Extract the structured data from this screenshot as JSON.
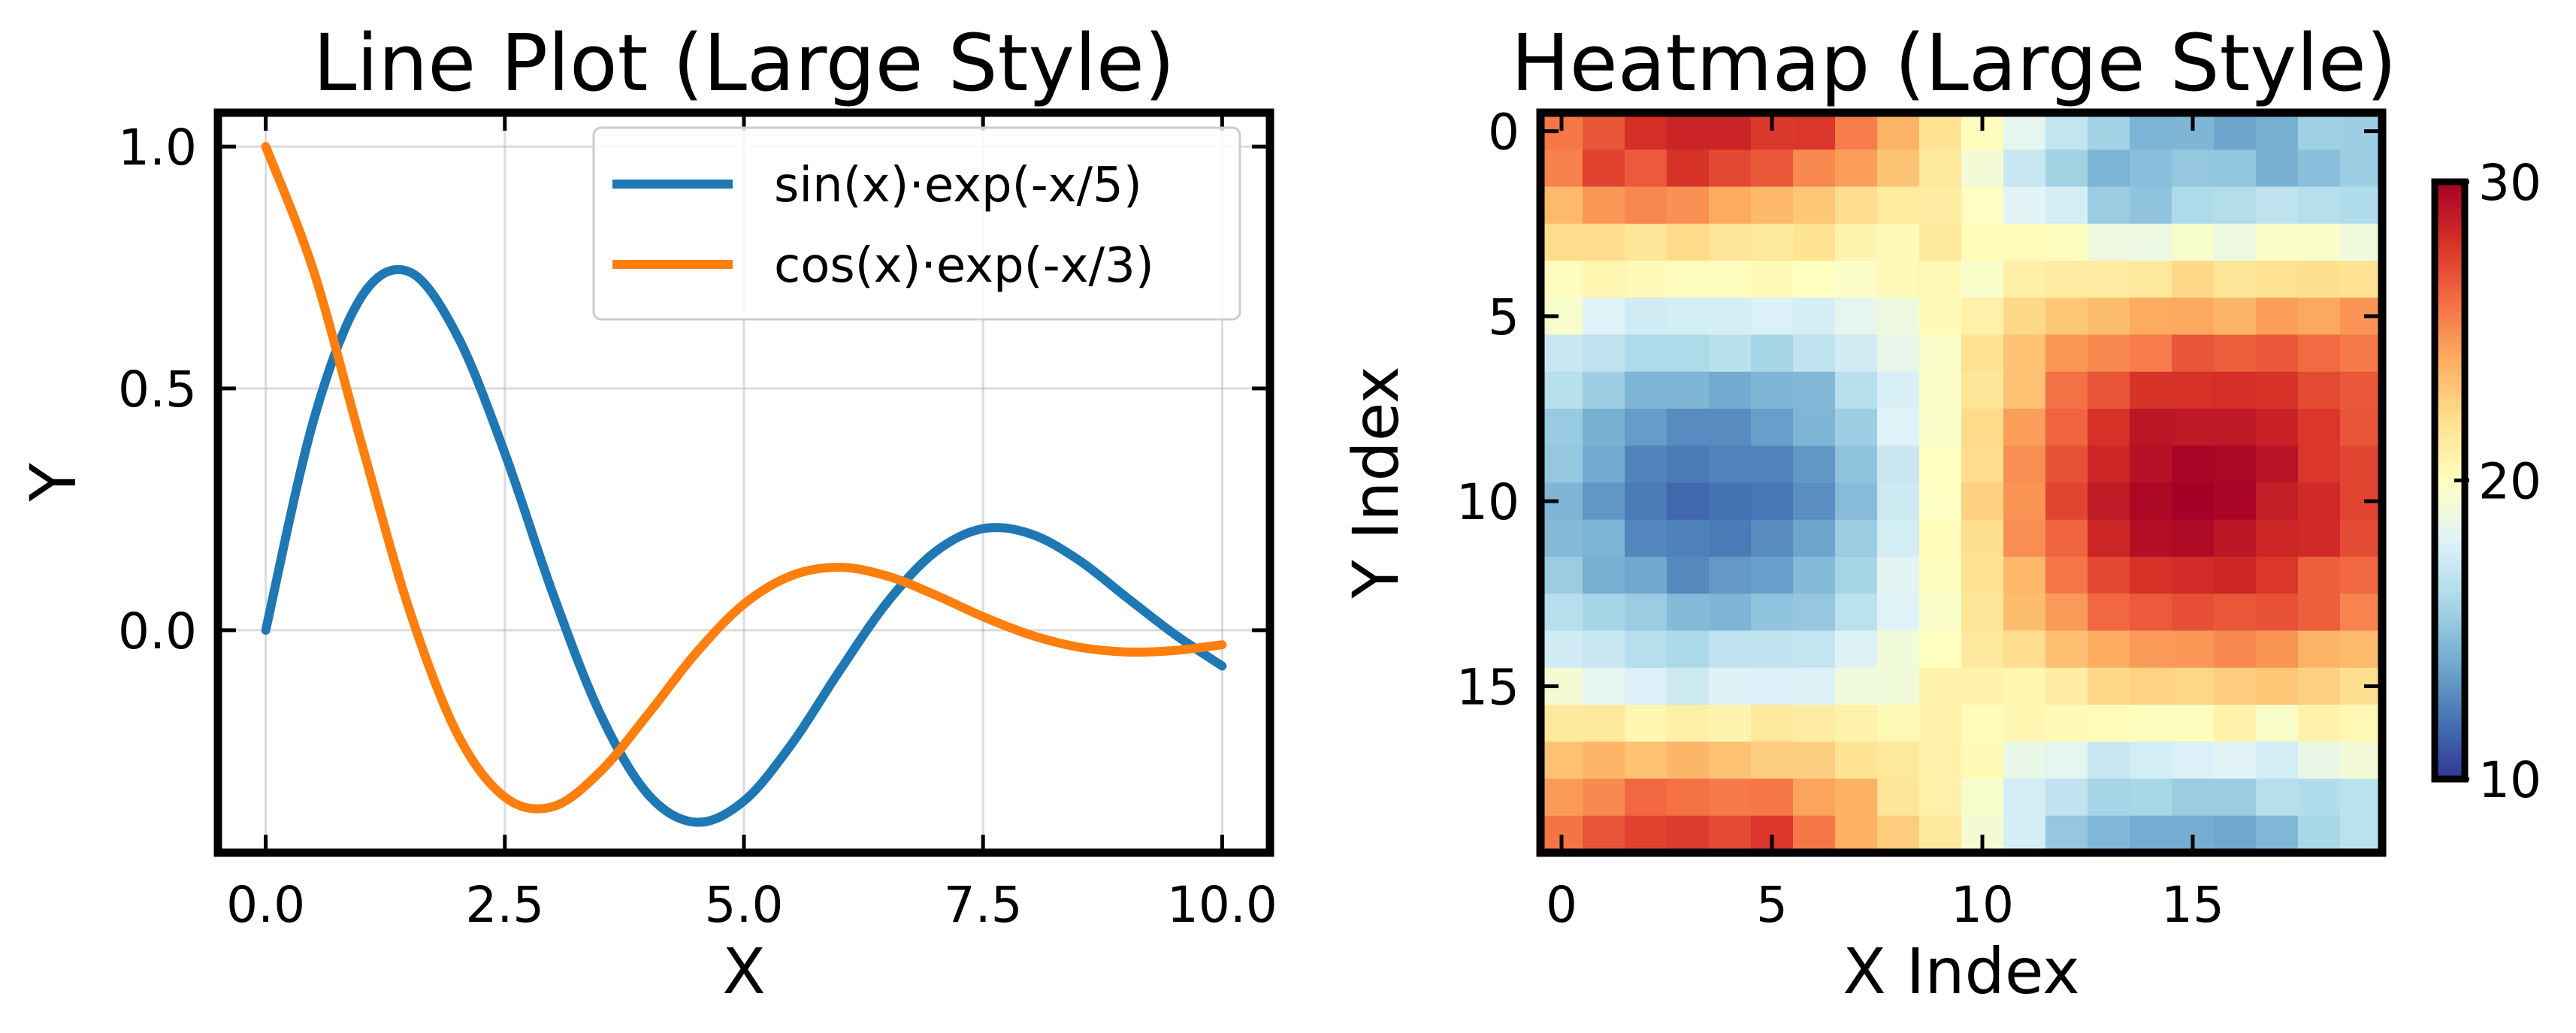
{
  "chart_data": [
    {
      "type": "line",
      "title": "Line Plot (Large Style)",
      "xlabel": "X",
      "ylabel": "Y",
      "xlim": [
        -0.5,
        10.5
      ],
      "ylim": [
        -0.46,
        1.07
      ],
      "xticks": [
        0.0,
        2.5,
        5.0,
        7.5,
        10.0
      ],
      "xtick_labels": [
        "0.0",
        "2.5",
        "5.0",
        "7.5",
        "10.0"
      ],
      "yticks": [
        0.0,
        0.5,
        1.0
      ],
      "ytick_labels": [
        "0.0",
        "0.5",
        "1.0"
      ],
      "grid": true,
      "legend_position": "top-right",
      "series": [
        {
          "name": "sin(x)·exp(-x/5)",
          "color": "#1f77b4",
          "x": [
            0.0,
            0.5,
            1.0,
            1.5,
            2.0,
            2.5,
            3.0,
            3.5,
            4.0,
            4.5,
            5.0,
            5.5,
            6.0,
            6.5,
            7.0,
            7.5,
            8.0,
            8.5,
            9.0,
            9.5,
            10.0
          ],
          "y": [
            0.0,
            0.434,
            0.689,
            0.741,
            0.61,
            0.366,
            0.077,
            -0.174,
            -0.34,
            -0.397,
            -0.353,
            -0.235,
            -0.084,
            0.058,
            0.162,
            0.21,
            0.199,
            0.145,
            0.068,
            -0.008,
            -0.074
          ]
        },
        {
          "name": "cos(x)·exp(-x/3)",
          "color": "#ff7f0e",
          "x": [
            0.0,
            0.5,
            1.0,
            1.5,
            2.0,
            2.5,
            3.0,
            3.5,
            4.0,
            4.5,
            5.0,
            5.5,
            6.0,
            6.5,
            7.0,
            7.5,
            8.0,
            8.5,
            9.0,
            9.5,
            10.0
          ],
          "y": [
            1.0,
            0.743,
            0.387,
            0.043,
            -0.213,
            -0.345,
            -0.365,
            -0.292,
            -0.173,
            -0.047,
            0.054,
            0.113,
            0.13,
            0.112,
            0.073,
            0.028,
            -0.01,
            -0.035,
            -0.045,
            -0.042,
            -0.03
          ]
        }
      ]
    },
    {
      "type": "heatmap",
      "title": "Heatmap (Large Style)",
      "xlabel": "X Index",
      "ylabel": "Y Index",
      "rows": 20,
      "cols": 20,
      "xticks": [
        0,
        5,
        10,
        15
      ],
      "xtick_labels": [
        "0",
        "5",
        "10",
        "15"
      ],
      "yticks": [
        0,
        5,
        10,
        15
      ],
      "ytick_labels": [
        "0",
        "5",
        "10",
        "15"
      ],
      "colormap": "RdYlBu_r",
      "vmin": 10,
      "vmax": 30,
      "colorbar_ticks": [
        10,
        20,
        30
      ],
      "colorbar_tick_labels": [
        "10",
        "20",
        "30"
      ],
      "values": [
        [
          25.7,
          26.8,
          28.1,
          28.5,
          28.5,
          27.7,
          27.8,
          25.5,
          23.8,
          21.8,
          20.1,
          18.3,
          16.9,
          15.7,
          14.3,
          14.4,
          13.7,
          14.1,
          15.6,
          15.5
        ],
        [
          25.4,
          27.4,
          26.6,
          27.9,
          27.2,
          26.7,
          25.1,
          24.5,
          23.1,
          21.5,
          19.2,
          17.1,
          15.7,
          14.3,
          14.8,
          15.2,
          15.1,
          14.2,
          14.8,
          15.5
        ],
        [
          23.5,
          24.7,
          25.2,
          24.9,
          24.1,
          23.6,
          23.0,
          22.1,
          21.3,
          21.2,
          19.9,
          18.1,
          17.6,
          15.4,
          15.0,
          16.1,
          16.3,
          16.7,
          16.4,
          16.2
        ],
        [
          22.1,
          22.1,
          21.6,
          22.2,
          21.7,
          21.4,
          21.8,
          20.7,
          20.4,
          21.5,
          20.2,
          20.2,
          20.1,
          18.9,
          18.8,
          19.5,
          18.9,
          19.7,
          19.6,
          19.0
        ],
        [
          20.1,
          20.6,
          20.3,
          20.1,
          20.1,
          20.3,
          20.0,
          19.7,
          20.3,
          20.5,
          19.6,
          21.0,
          21.2,
          21.2,
          21.5,
          22.3,
          21.6,
          21.8,
          22.0,
          21.8
        ],
        [
          19.5,
          18.0,
          17.4,
          17.5,
          17.6,
          17.8,
          17.6,
          18.4,
          18.9,
          20.3,
          20.9,
          22.3,
          23.0,
          23.4,
          24.1,
          24.2,
          23.7,
          24.5,
          24.2,
          24.8
        ],
        [
          17.1,
          16.7,
          16.1,
          16.1,
          16.5,
          15.8,
          16.8,
          17.4,
          18.5,
          19.6,
          21.9,
          23.2,
          24.7,
          25.1,
          25.5,
          26.8,
          26.5,
          26.7,
          26.1,
          25.6
        ],
        [
          16.5,
          15.5,
          14.4,
          14.4,
          13.9,
          14.4,
          14.5,
          16.5,
          17.7,
          19.7,
          21.7,
          23.2,
          25.9,
          26.8,
          27.9,
          28.0,
          28.1,
          27.9,
          27.1,
          26.7
        ],
        [
          15.3,
          14.2,
          13.4,
          12.8,
          12.8,
          13.5,
          14.4,
          15.5,
          18.0,
          19.6,
          22.2,
          24.5,
          26.3,
          28.0,
          29.1,
          29.0,
          29.0,
          28.6,
          27.8,
          26.8
        ],
        [
          15.2,
          13.9,
          12.5,
          12.2,
          12.5,
          12.5,
          13.2,
          15.0,
          17.1,
          20.0,
          22.1,
          25.0,
          26.9,
          28.4,
          29.3,
          29.8,
          29.7,
          29.2,
          27.8,
          27.3
        ],
        [
          14.4,
          13.2,
          12.2,
          11.6,
          11.9,
          12.1,
          12.9,
          14.7,
          17.3,
          19.9,
          22.6,
          24.8,
          27.3,
          28.9,
          29.7,
          30.0,
          29.8,
          28.8,
          28.3,
          27.3
        ],
        [
          14.6,
          14.3,
          12.6,
          12.4,
          12.2,
          12.8,
          13.7,
          15.4,
          17.5,
          20.2,
          22.0,
          25.0,
          26.3,
          28.4,
          29.4,
          29.6,
          29.1,
          28.4,
          28.3,
          27.1
        ],
        [
          15.4,
          14.1,
          13.8,
          12.7,
          13.3,
          13.5,
          14.6,
          15.8,
          18.2,
          20.1,
          21.8,
          23.6,
          25.7,
          27.2,
          28.0,
          28.2,
          28.4,
          27.8,
          26.5,
          26.2
        ],
        [
          16.4,
          15.8,
          15.4,
          14.6,
          14.4,
          15.0,
          15.2,
          16.6,
          18.0,
          19.6,
          21.7,
          23.4,
          24.6,
          26.2,
          26.6,
          27.0,
          26.7,
          26.9,
          26.5,
          25.3
        ],
        [
          17.4,
          17.1,
          16.4,
          16.0,
          16.7,
          16.8,
          16.9,
          17.9,
          19.1,
          20.0,
          21.4,
          22.1,
          23.3,
          24.0,
          24.6,
          24.7,
          25.1,
          24.8,
          23.8,
          23.5
        ],
        [
          19.3,
          18.4,
          17.8,
          17.3,
          17.9,
          17.8,
          17.9,
          19.0,
          19.1,
          20.8,
          20.8,
          20.6,
          21.2,
          22.3,
          22.5,
          22.4,
          22.8,
          23.0,
          22.6,
          22.0
        ],
        [
          21.4,
          21.5,
          20.6,
          21.0,
          20.7,
          21.5,
          21.2,
          20.8,
          20.4,
          20.8,
          20.2,
          20.6,
          20.3,
          20.2,
          20.1,
          20.1,
          20.8,
          19.6,
          20.8,
          20.5
        ],
        [
          23.2,
          23.7,
          23.2,
          23.7,
          23.2,
          22.7,
          22.7,
          21.8,
          21.5,
          20.9,
          20.4,
          18.6,
          18.3,
          17.1,
          17.5,
          17.8,
          18.1,
          17.5,
          18.6,
          19.2
        ],
        [
          24.6,
          25.1,
          26.2,
          25.9,
          25.6,
          25.7,
          24.3,
          23.9,
          21.6,
          20.9,
          19.5,
          17.5,
          16.8,
          15.8,
          15.9,
          15.4,
          15.4,
          16.4,
          16.2,
          16.6
        ],
        [
          25.8,
          26.8,
          27.4,
          27.6,
          27.1,
          27.8,
          25.7,
          23.9,
          22.8,
          21.4,
          19.3,
          17.6,
          15.2,
          14.5,
          14.0,
          14.0,
          13.8,
          14.5,
          15.9,
          16.6
        ]
      ]
    }
  ]
}
